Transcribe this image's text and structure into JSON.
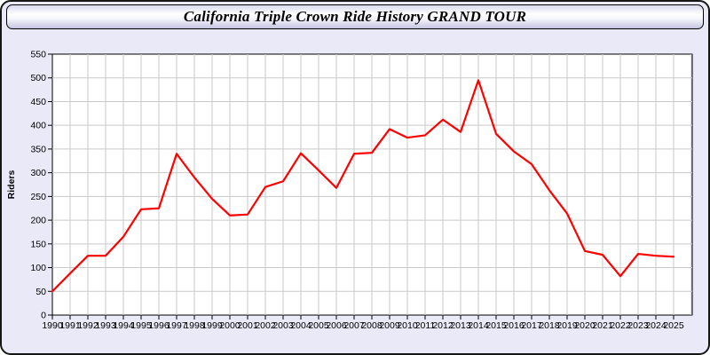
{
  "window": {
    "title": "California Triple Crown Ride History GRAND TOUR",
    "background_color": "#e9e9f8",
    "border_color": "#161616"
  },
  "chart_data": {
    "type": "line",
    "title": "California Triple Crown Ride History GRAND TOUR",
    "xlabel": "",
    "ylabel": "Riders",
    "x": [
      1990,
      1991,
      1992,
      1993,
      1994,
      1995,
      1996,
      1997,
      1998,
      1999,
      2000,
      2001,
      2002,
      2003,
      2004,
      2005,
      2006,
      2007,
      2008,
      2009,
      2010,
      2011,
      2012,
      2013,
      2014,
      2015,
      2016,
      2017,
      2018,
      2019,
      2020,
      2021,
      2022,
      2023,
      2024,
      2025
    ],
    "series": [
      {
        "name": "Riders",
        "color": "#ff0000",
        "values": [
          50,
          88,
          125,
          125,
          165,
          223,
          225,
          340,
          290,
          245,
          210,
          212,
          270,
          282,
          341,
          305,
          268,
          340,
          342,
          392,
          374,
          379,
          412,
          386,
          495,
          382,
          345,
          318,
          263,
          214,
          135,
          127,
          82,
          129,
          125,
          123
        ]
      }
    ],
    "ylim": [
      0,
      550
    ],
    "ytick_step": 50,
    "yticks": [
      0,
      50,
      100,
      150,
      200,
      250,
      300,
      350,
      400,
      450,
      500,
      550
    ],
    "grid": true,
    "legend_position": "none",
    "plot_bg": "#ffffff",
    "grid_color": "#c9c9c9",
    "axis_color": "#000000",
    "tick_label_color": "#000000"
  }
}
